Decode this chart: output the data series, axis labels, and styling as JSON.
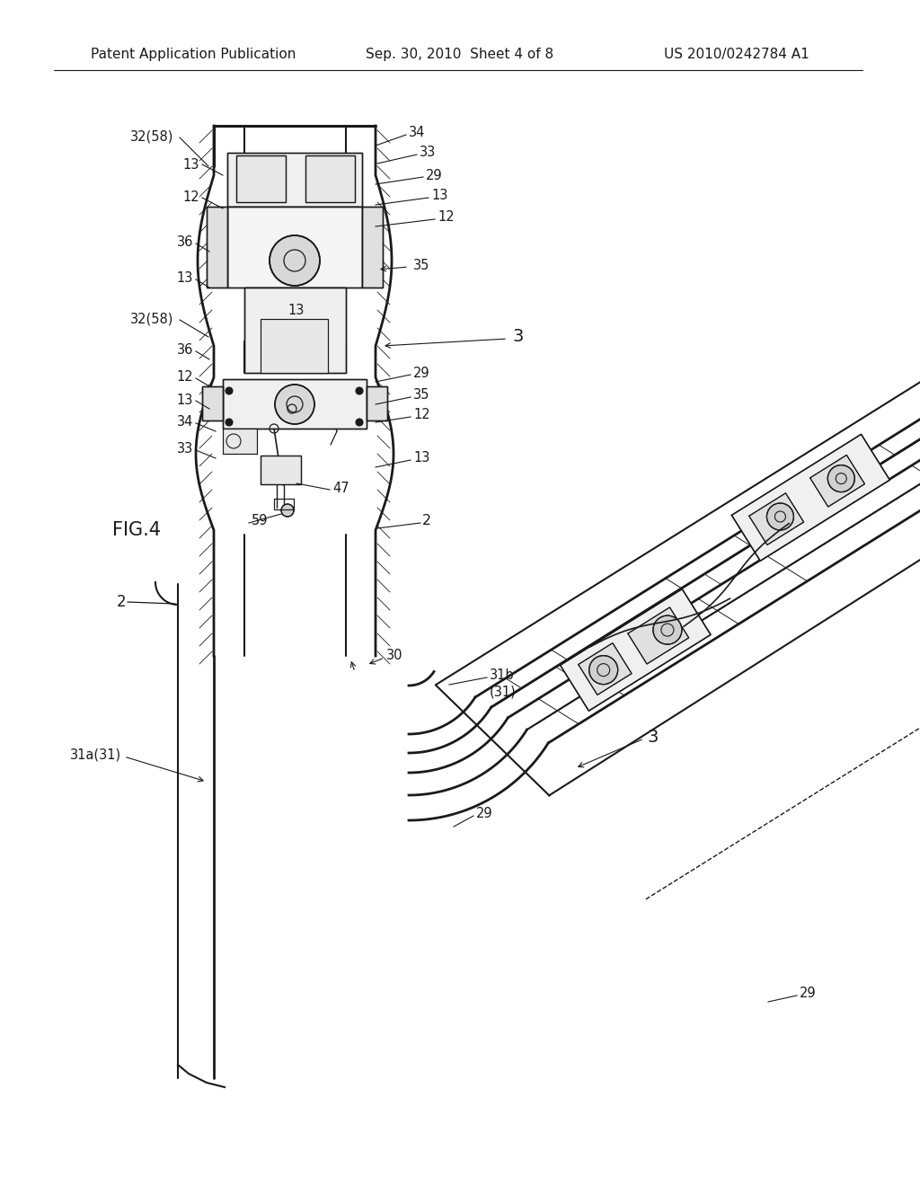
{
  "bg_color": "#ffffff",
  "lc": "#1a1a1a",
  "header_left": "Patent Application Publication",
  "header_mid": "Sep. 30, 2010  Sheet 4 of 8",
  "header_right": "US 2010/0242784 A1",
  "fig_label": "FIG.4",
  "fs": 10.5,
  "fs_big": 14
}
